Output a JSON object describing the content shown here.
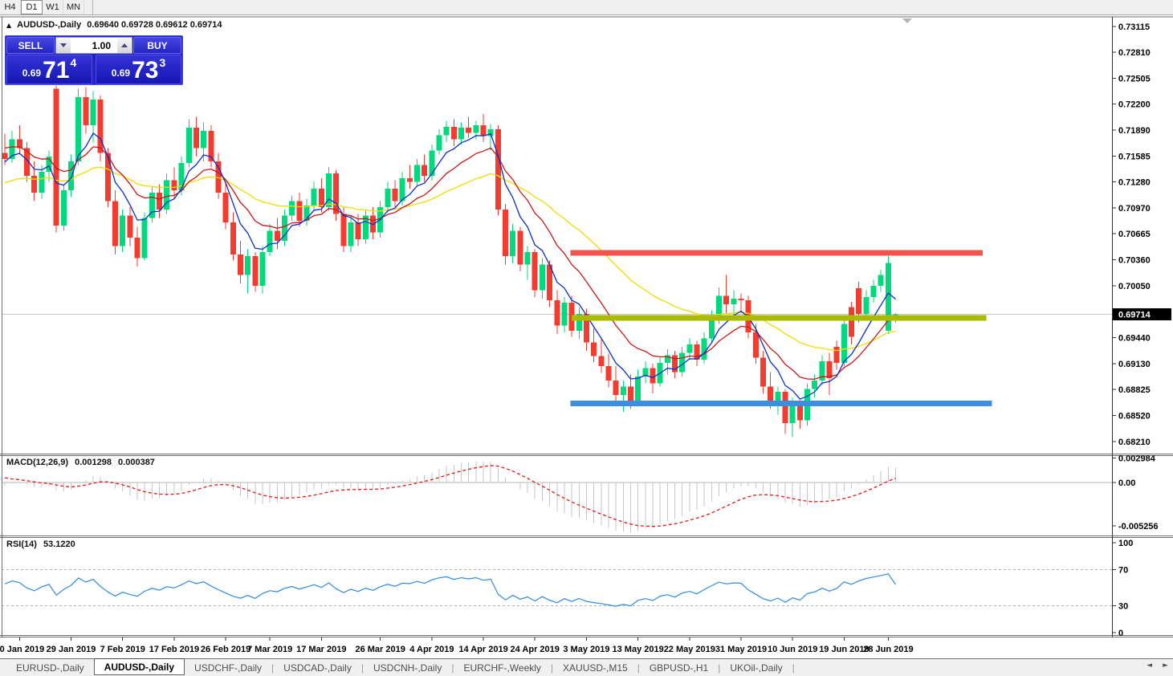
{
  "toolbar": {
    "timeframes": [
      {
        "label": "H4",
        "active": false
      },
      {
        "label": "D1",
        "active": true
      },
      {
        "label": "W1",
        "active": false
      },
      {
        "label": "MN",
        "active": false
      }
    ]
  },
  "chart_header": {
    "collapse_icon": "▲",
    "symbol": "AUDUSD-,Daily",
    "ohlc": "0.69640 0.69728 0.69612 0.69714"
  },
  "trade_panel": {
    "sell_label": "SELL",
    "buy_label": "BUY",
    "volume": "1.00",
    "sell_price": {
      "prefix": "0.69",
      "big": "71",
      "sup": "4"
    },
    "buy_price": {
      "prefix": "0.69",
      "big": "73",
      "sup": "3"
    }
  },
  "pane_labels": {
    "macd": "MACD(12,26,9)",
    "macd_value": "0.001298",
    "macd_signal_value": "0.000387",
    "rsi": "RSI(14)",
    "rsi_value": "53.1220"
  },
  "tabs": {
    "items": [
      {
        "label": "EURUSD-,Daily",
        "active": false
      },
      {
        "label": "AUDUSD-,Daily",
        "active": true
      },
      {
        "label": "USDCHF-,Daily",
        "active": false
      },
      {
        "label": "USDCAD-,Daily",
        "active": false
      },
      {
        "label": "USDCNH-,Daily",
        "active": false
      },
      {
        "label": "EURCHF-,Weekly",
        "active": false
      },
      {
        "label": "XAUUSD-,M15",
        "active": false
      },
      {
        "label": "GBPUSD-,H1",
        "active": false
      },
      {
        "label": "UKOil-,Daily",
        "active": false
      }
    ],
    "scroll_left_icon": "◄",
    "scroll_right_icon": "►"
  },
  "chart_data": {
    "type": "candlestick",
    "symbol": "AUDUSD",
    "timeframe": "Daily",
    "current_price": 0.69714,
    "price_axis": {
      "top_tick": 0.73115,
      "bottom_tick": 0.6821,
      "ticks": [
        0.73115,
        0.7281,
        0.72505,
        0.722,
        0.7189,
        0.71585,
        0.7128,
        0.7097,
        0.70665,
        0.7036,
        0.7005,
        0.6944,
        0.6913,
        0.68825,
        0.6852,
        0.6821
      ]
    },
    "date_axis": [
      {
        "label": "20 Jan 2019",
        "bar": 2
      },
      {
        "label": "29 Jan 2019",
        "bar": 9
      },
      {
        "label": "7 Feb 2019",
        "bar": 16
      },
      {
        "label": "17 Feb 2019",
        "bar": 23
      },
      {
        "label": "26 Feb 2019",
        "bar": 30
      },
      {
        "label": "7 Mar 2019",
        "bar": 36
      },
      {
        "label": "17 Mar 2019",
        "bar": 43
      },
      {
        "label": "26 Mar 2019",
        "bar": 51
      },
      {
        "label": "4 Apr 2019",
        "bar": 58
      },
      {
        "label": "14 Apr 2019",
        "bar": 65
      },
      {
        "label": "24 Apr 2019",
        "bar": 72
      },
      {
        "label": "3 May 2019",
        "bar": 79
      },
      {
        "label": "13 May 2019",
        "bar": 86
      },
      {
        "label": "22 May 2019",
        "bar": 93
      },
      {
        "label": "31 May 2019",
        "bar": 100
      },
      {
        "label": "10 Jun 2019",
        "bar": 107
      },
      {
        "label": "19 Jun 2019",
        "bar": 114
      },
      {
        "label": "28 Jun 2019",
        "bar": 120
      }
    ],
    "candles": [
      [
        0.7162,
        0.7185,
        0.7148,
        0.7155
      ],
      [
        0.7155,
        0.7188,
        0.715,
        0.7178
      ],
      [
        0.7178,
        0.7195,
        0.716,
        0.7168
      ],
      [
        0.7168,
        0.7175,
        0.7128,
        0.7135
      ],
      [
        0.7135,
        0.7152,
        0.7105,
        0.7115
      ],
      [
        0.7115,
        0.7148,
        0.7108,
        0.714
      ],
      [
        0.714,
        0.7165,
        0.7128,
        0.7158
      ],
      [
        0.7238,
        0.7242,
        0.7068,
        0.7076
      ],
      [
        0.7076,
        0.7125,
        0.707,
        0.7118
      ],
      [
        0.7118,
        0.716,
        0.711,
        0.7152
      ],
      [
        0.7152,
        0.7238,
        0.7148,
        0.7228
      ],
      [
        0.7228,
        0.724,
        0.7185,
        0.7195
      ],
      [
        0.7195,
        0.7235,
        0.7175,
        0.7225
      ],
      [
        0.7225,
        0.723,
        0.7152,
        0.7162
      ],
      [
        0.7162,
        0.7168,
        0.7098,
        0.7105
      ],
      [
        0.7105,
        0.7118,
        0.7042,
        0.7052
      ],
      [
        0.7052,
        0.7095,
        0.7045,
        0.7088
      ],
      [
        0.7088,
        0.7098,
        0.7052,
        0.7062
      ],
      [
        0.7062,
        0.7075,
        0.7028,
        0.7038
      ],
      [
        0.7038,
        0.7092,
        0.7035,
        0.7085
      ],
      [
        0.7085,
        0.7122,
        0.708,
        0.7115
      ],
      [
        0.7115,
        0.7125,
        0.7085,
        0.7095
      ],
      [
        0.7095,
        0.7138,
        0.709,
        0.713
      ],
      [
        0.713,
        0.7145,
        0.7108,
        0.7118
      ],
      [
        0.7118,
        0.7158,
        0.7112,
        0.715
      ],
      [
        0.715,
        0.7202,
        0.7145,
        0.7192
      ],
      [
        0.7192,
        0.7205,
        0.7158,
        0.7168
      ],
      [
        0.7168,
        0.7198,
        0.7152,
        0.7188
      ],
      [
        0.7188,
        0.7195,
        0.7145,
        0.7152
      ],
      [
        0.7152,
        0.7162,
        0.7108,
        0.7115
      ],
      [
        0.7115,
        0.7128,
        0.7072,
        0.708
      ],
      [
        0.708,
        0.7092,
        0.7035,
        0.7042
      ],
      [
        0.7042,
        0.7058,
        0.7008,
        0.7018
      ],
      [
        0.7018,
        0.7048,
        0.6996,
        0.704
      ],
      [
        0.704,
        0.7045,
        0.6998,
        0.7005
      ],
      [
        0.7005,
        0.7052,
        0.6996,
        0.7045
      ],
      [
        0.7045,
        0.7078,
        0.704,
        0.707
      ],
      [
        0.707,
        0.7085,
        0.7048,
        0.7058
      ],
      [
        0.7058,
        0.7095,
        0.7052,
        0.7088
      ],
      [
        0.7088,
        0.7112,
        0.7082,
        0.7105
      ],
      [
        0.7105,
        0.7115,
        0.7075,
        0.7082
      ],
      [
        0.7082,
        0.7108,
        0.7076,
        0.71
      ],
      [
        0.71,
        0.7128,
        0.7095,
        0.712
      ],
      [
        0.712,
        0.7132,
        0.7092,
        0.7098
      ],
      [
        0.7098,
        0.7145,
        0.7094,
        0.7138
      ],
      [
        0.7138,
        0.7142,
        0.7082,
        0.709
      ],
      [
        0.709,
        0.7098,
        0.7045,
        0.7052
      ],
      [
        0.7052,
        0.7088,
        0.7045,
        0.708
      ],
      [
        0.708,
        0.709,
        0.7052,
        0.706
      ],
      [
        0.706,
        0.7095,
        0.7055,
        0.7088
      ],
      [
        0.7088,
        0.7098,
        0.706,
        0.7068
      ],
      [
        0.7068,
        0.7105,
        0.7062,
        0.7098
      ],
      [
        0.7098,
        0.7128,
        0.7092,
        0.712
      ],
      [
        0.712,
        0.713,
        0.7098,
        0.7105
      ],
      [
        0.7105,
        0.714,
        0.71,
        0.7132
      ],
      [
        0.7132,
        0.7148,
        0.712,
        0.7128
      ],
      [
        0.7128,
        0.7155,
        0.7122,
        0.7148
      ],
      [
        0.7148,
        0.716,
        0.7128,
        0.7135
      ],
      [
        0.7135,
        0.7172,
        0.713,
        0.7165
      ],
      [
        0.7165,
        0.719,
        0.716,
        0.7183
      ],
      [
        0.7183,
        0.72,
        0.7175,
        0.7193
      ],
      [
        0.7193,
        0.7202,
        0.717,
        0.7178
      ],
      [
        0.7178,
        0.7198,
        0.7172,
        0.7192
      ],
      [
        0.7192,
        0.7205,
        0.718,
        0.7186
      ],
      [
        0.7186,
        0.72,
        0.7178,
        0.7195
      ],
      [
        0.7195,
        0.7208,
        0.7175,
        0.7182
      ],
      [
        0.7182,
        0.7196,
        0.7165,
        0.719
      ],
      [
        0.719,
        0.7195,
        0.7088,
        0.7095
      ],
      [
        0.7095,
        0.7102,
        0.703,
        0.704
      ],
      [
        0.704,
        0.7078,
        0.7032,
        0.707
      ],
      [
        0.707,
        0.7075,
        0.7022,
        0.703
      ],
      [
        0.703,
        0.7052,
        0.7012,
        0.7045
      ],
      [
        0.7045,
        0.7048,
        0.6992,
        0.7
      ],
      [
        0.7,
        0.7038,
        0.699,
        0.703
      ],
      [
        0.703,
        0.7035,
        0.698,
        0.6988
      ],
      [
        0.6988,
        0.7,
        0.6948,
        0.6958
      ],
      [
        0.6958,
        0.6992,
        0.695,
        0.6985
      ],
      [
        0.6985,
        0.6993,
        0.6945,
        0.6952
      ],
      [
        0.6952,
        0.698,
        0.6942,
        0.6972
      ],
      [
        0.6972,
        0.6978,
        0.6928,
        0.6938
      ],
      [
        0.6938,
        0.6955,
        0.6915,
        0.6922
      ],
      [
        0.6922,
        0.6942,
        0.6902,
        0.691
      ],
      [
        0.691,
        0.6925,
        0.6885,
        0.6893
      ],
      [
        0.6893,
        0.691,
        0.6868,
        0.6876
      ],
      [
        0.6876,
        0.6893,
        0.6856,
        0.6886
      ],
      [
        0.6886,
        0.69,
        0.686,
        0.6868
      ],
      [
        0.6868,
        0.6906,
        0.6863,
        0.6898
      ],
      [
        0.6898,
        0.6916,
        0.689,
        0.6908
      ],
      [
        0.6908,
        0.6913,
        0.6878,
        0.689
      ],
      [
        0.689,
        0.692,
        0.6886,
        0.6914
      ],
      [
        0.6914,
        0.693,
        0.69,
        0.6923
      ],
      [
        0.6923,
        0.6928,
        0.6896,
        0.6903
      ],
      [
        0.6903,
        0.6933,
        0.6898,
        0.6926
      ],
      [
        0.6926,
        0.6943,
        0.6918,
        0.6936
      ],
      [
        0.6936,
        0.694,
        0.691,
        0.6918
      ],
      [
        0.6918,
        0.695,
        0.6913,
        0.6943
      ],
      [
        0.6943,
        0.6976,
        0.6938,
        0.6968
      ],
      [
        0.6968,
        0.7003,
        0.696,
        0.6993
      ],
      [
        0.6993,
        0.7018,
        0.6973,
        0.6983
      ],
      [
        0.6983,
        0.7,
        0.6966,
        0.699
      ],
      [
        0.699,
        0.6996,
        0.6973,
        0.6988
      ],
      [
        0.6988,
        0.6993,
        0.6943,
        0.695
      ],
      [
        0.695,
        0.696,
        0.6913,
        0.692
      ],
      [
        0.692,
        0.6928,
        0.6878,
        0.6886
      ],
      [
        0.6886,
        0.6903,
        0.686,
        0.6866
      ],
      [
        0.6866,
        0.6886,
        0.6853,
        0.688
      ],
      [
        0.688,
        0.6883,
        0.683,
        0.6843
      ],
      [
        0.6843,
        0.6873,
        0.6826,
        0.6866
      ],
      [
        0.6866,
        0.687,
        0.6836,
        0.6846
      ],
      [
        0.6846,
        0.689,
        0.684,
        0.6883
      ],
      [
        0.6883,
        0.69,
        0.6873,
        0.6893
      ],
      [
        0.6893,
        0.6923,
        0.6888,
        0.6916
      ],
      [
        0.6916,
        0.6926,
        0.6876,
        0.6896
      ],
      [
        0.6933,
        0.694,
        0.6906,
        0.6914
      ],
      [
        0.6914,
        0.6966,
        0.691,
        0.696
      ],
      [
        0.698,
        0.6986,
        0.6936,
        0.6945
      ],
      [
        0.7002,
        0.701,
        0.6962,
        0.6972
      ],
      [
        0.6972,
        0.7,
        0.6966,
        0.6992
      ],
      [
        0.6992,
        0.7012,
        0.6985,
        0.7005
      ],
      [
        0.7005,
        0.7024,
        0.6998,
        0.7018
      ],
      [
        0.6952,
        0.704,
        0.6948,
        0.7032
      ],
      [
        0.6964,
        0.69728,
        0.69612,
        0.69714
      ]
    ],
    "colors": {
      "bull": "#00d97e",
      "bear": "#f43b30",
      "ma_fast": "#0a2ecc",
      "ma_mid": "#cc1616",
      "ma_slow": "#eedd00",
      "macd_hist": "#c6c6c6",
      "macd_signal": "#e01818",
      "rsi": "#2f8be0",
      "level_line": "#b4b4b4",
      "price_line": "#c8c8c8",
      "price_box_bg": "#000000",
      "price_box_text": "#ffffff"
    },
    "overlays": {
      "ma_fast": {
        "period": 6,
        "seed": 0.715
      },
      "ma_mid": {
        "period": 13,
        "seed": 0.717
      },
      "ma_slow": {
        "period": 34,
        "seed": 0.7125
      }
    },
    "indicators": {
      "macd": {
        "fast": 12,
        "slow": 26,
        "signal": 9,
        "seed_fast": -0.0002,
        "seed_slow": 0.0002,
        "seed_signal": 0.0008,
        "axis": [
          {
            "label": "0.002984",
            "value": 0.002984
          },
          {
            "label": "0.00",
            "value": 0
          },
          {
            "label": "-0.005256",
            "value": -0.005256
          }
        ]
      },
      "rsi": {
        "period": 14,
        "seed_gain": 0.0013,
        "seed_loss": 0.0011,
        "levels": [
          {
            "label": "100",
            "value": 100,
            "dashed": false
          },
          {
            "label": "70",
            "value": 70,
            "dashed": true
          },
          {
            "label": "30",
            "value": 30,
            "dashed": true
          },
          {
            "label": "0",
            "value": 0,
            "dashed": false
          }
        ]
      }
    },
    "hlines": [
      {
        "name": "resistance-line",
        "price": 0.7044,
        "bar_from": 76.8,
        "bar_to": 132.8,
        "color": "#f4534b",
        "thickness": 7
      },
      {
        "name": "pivot-line",
        "price": 0.6967,
        "bar_from": 77.0,
        "bar_to": 133.3,
        "color": "#aaba00",
        "thickness": 7
      },
      {
        "name": "support-line",
        "price": 0.6866,
        "bar_from": 76.8,
        "bar_to": 134.1,
        "color": "#3d8edd",
        "thickness": 7
      }
    ]
  }
}
